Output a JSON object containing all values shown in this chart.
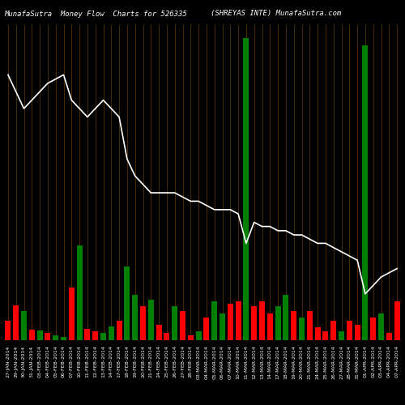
{
  "title_left": "MunafaSutra  Money Flow  Charts for 526335",
  "title_right": "(SHREYAS INTE) MunafaSutra.com",
  "background_color": "#000000",
  "grid_color": "#5a3000",
  "bar_colors": [
    "red",
    "red",
    "green",
    "red",
    "green",
    "red",
    "green",
    "green",
    "red",
    "green",
    "red",
    "red",
    "green",
    "green",
    "red",
    "green",
    "green",
    "red",
    "green",
    "red",
    "red",
    "green",
    "red",
    "red",
    "green",
    "red",
    "green",
    "green",
    "red",
    "red",
    "green",
    "red",
    "red",
    "red",
    "green",
    "green",
    "red",
    "green",
    "red",
    "red",
    "red",
    "red",
    "green",
    "red",
    "red",
    "green",
    "red",
    "green",
    "red",
    "red"
  ],
  "bar_values": [
    28,
    50,
    42,
    15,
    14,
    10,
    7,
    5,
    75,
    135,
    16,
    13,
    10,
    20,
    28,
    105,
    65,
    48,
    58,
    22,
    10,
    48,
    42,
    7,
    13,
    32,
    55,
    38,
    52,
    55,
    430,
    48,
    55,
    38,
    48,
    65,
    42,
    32,
    42,
    18,
    13,
    28,
    13,
    28,
    22,
    420,
    32,
    38,
    10,
    55
  ],
  "line_values": [
    88,
    84,
    80,
    82,
    84,
    86,
    87,
    88,
    82,
    80,
    78,
    80,
    82,
    80,
    78,
    68,
    64,
    62,
    60,
    60,
    60,
    60,
    59,
    58,
    58,
    57,
    56,
    56,
    56,
    55,
    48,
    53,
    52,
    52,
    51,
    51,
    50,
    50,
    49,
    48,
    48,
    47,
    46,
    45,
    44,
    36,
    38,
    40,
    41,
    42
  ],
  "xlabel_fontsize": 4.5,
  "title_fontsize": 6.5,
  "line_color": "#ffffff",
  "line_width": 1.2,
  "ylim_bars": [
    0,
    450
  ],
  "ylim_line": [
    25,
    100
  ],
  "labels": [
    "27-JAN-2014",
    "29-JAN-2014",
    "30-JAN-2014",
    "31-JAN-2014",
    "03-FEB-2014",
    "04-FEB-2014",
    "05-FEB-2014",
    "06-FEB-2014",
    "07-FEB-2014",
    "10-FEB-2014",
    "11-FEB-2014",
    "12-FEB-2014",
    "13-FEB-2014",
    "14-FEB-2014",
    "17-FEB-2014",
    "18-FEB-2014",
    "19-FEB-2014",
    "20-FEB-2014",
    "21-FEB-2014",
    "24-FEB-2014",
    "25-FEB-2014",
    "26-FEB-2014",
    "27-FEB-2014",
    "28-FEB-2014",
    "03-MAR-2014",
    "04-MAR-2014",
    "05-MAR-2014",
    "06-MAR-2014",
    "07-MAR-2014",
    "10-MAR-2014",
    "11-MAR-2014",
    "12-MAR-2014",
    "13-MAR-2014",
    "14-MAR-2014",
    "17-MAR-2014",
    "18-MAR-2014",
    "19-MAR-2014",
    "20-MAR-2014",
    "21-MAR-2014",
    "24-MAR-2014",
    "25-MAR-2014",
    "26-MAR-2014",
    "27-MAR-2014",
    "28-MAR-2014",
    "31-MAR-2014",
    "01-APR-2014",
    "02-APR-2014",
    "03-APR-2014",
    "04-APR-2014",
    "07-APR-2014"
  ]
}
